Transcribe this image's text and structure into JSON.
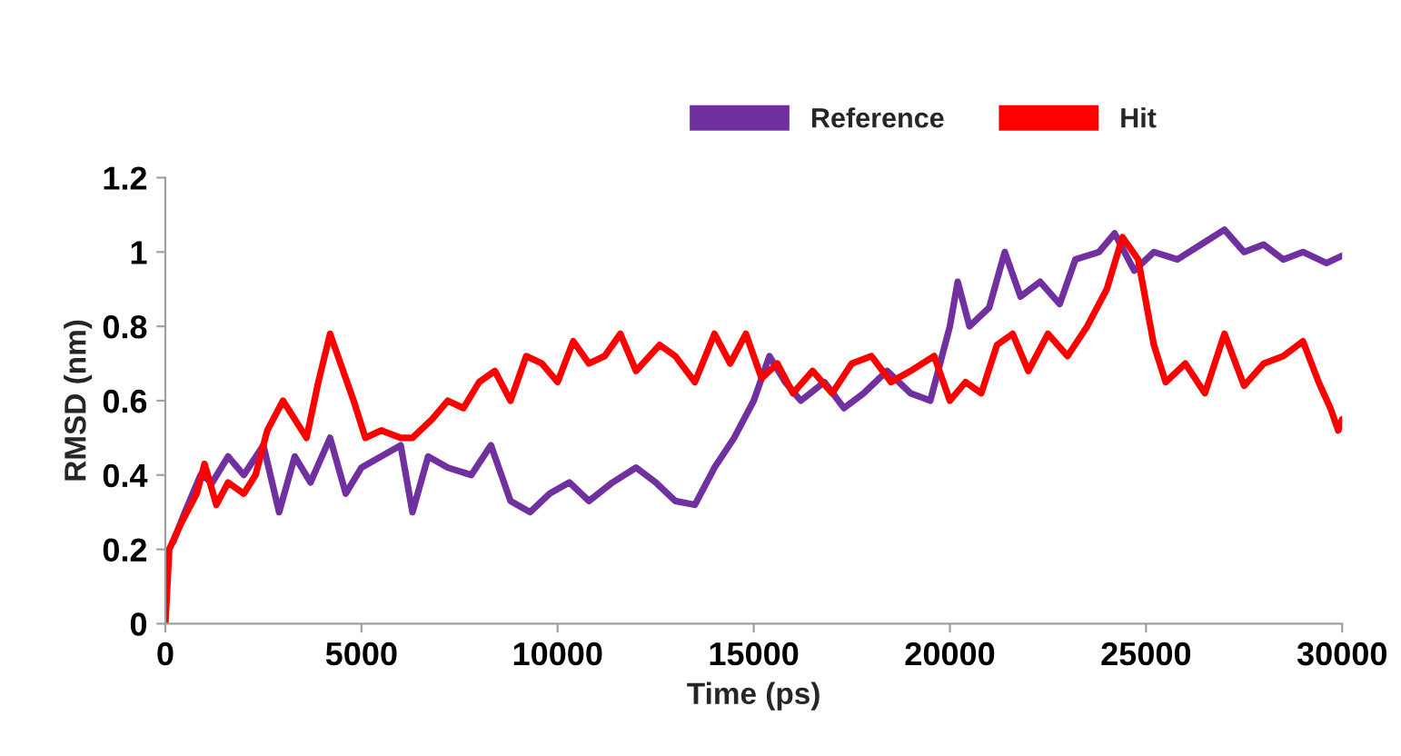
{
  "chart_data": {
    "type": "line",
    "xlabel": "Time (ps)",
    "ylabel": "RMSD (nm)",
    "xlim": [
      0,
      30000
    ],
    "xticks": [
      0,
      5000,
      10000,
      15000,
      20000,
      25000,
      30000
    ],
    "ylim": [
      0,
      1.2
    ],
    "yticks": [
      0,
      0.2,
      0.4,
      0.6,
      0.8,
      1,
      1.2
    ],
    "grid": false,
    "legend": "top right",
    "marker": "none",
    "line_style": "solid",
    "series": [
      {
        "name": "Reference",
        "color": "#7030a0",
        "x": [
          200,
          500,
          900,
          1200,
          1600,
          2000,
          2500,
          2900,
          3300,
          3700,
          4200,
          4600,
          5000,
          5500,
          6000,
          6300,
          6700,
          7200,
          7800,
          8300,
          8800,
          9300,
          9800,
          10300,
          10800,
          11400,
          12000,
          12500,
          13000,
          13500,
          14000,
          14500,
          15000,
          15400,
          15800,
          16200,
          16800,
          17300,
          17800,
          18400,
          19000,
          19500,
          20000,
          20200,
          20500,
          21000,
          21400,
          21800,
          22300,
          22800,
          23200,
          23800,
          24200,
          24700,
          25200,
          25800,
          26400,
          27000,
          27500,
          28000,
          28500,
          29000,
          29600,
          30000
        ],
        "values": [
          0.22,
          0.3,
          0.4,
          0.38,
          0.45,
          0.4,
          0.48,
          0.3,
          0.45,
          0.38,
          0.5,
          0.35,
          0.42,
          0.45,
          0.48,
          0.3,
          0.45,
          0.42,
          0.4,
          0.48,
          0.33,
          0.3,
          0.35,
          0.38,
          0.33,
          0.38,
          0.42,
          0.38,
          0.33,
          0.32,
          0.42,
          0.5,
          0.6,
          0.72,
          0.65,
          0.6,
          0.65,
          0.58,
          0.62,
          0.68,
          0.62,
          0.6,
          0.8,
          0.92,
          0.8,
          0.85,
          1.0,
          0.88,
          0.92,
          0.86,
          0.98,
          1.0,
          1.05,
          0.95,
          1.0,
          0.98,
          1.02,
          1.06,
          1.0,
          1.02,
          0.98,
          1.0,
          0.97,
          0.99
        ]
      },
      {
        "name": "Hit",
        "color": "#ff0000",
        "x": [
          0,
          100,
          400,
          800,
          1000,
          1300,
          1600,
          2000,
          2300,
          2600,
          3000,
          3300,
          3600,
          3900,
          4200,
          4400,
          4800,
          5100,
          5500,
          6000,
          6300,
          6800,
          7200,
          7600,
          8000,
          8400,
          8800,
          9200,
          9600,
          10000,
          10400,
          10800,
          11200,
          11600,
          12000,
          12600,
          13000,
          13500,
          14000,
          14400,
          14800,
          15200,
          15600,
          16000,
          16500,
          17000,
          17500,
          18000,
          18500,
          19000,
          19600,
          20000,
          20400,
          20800,
          21200,
          21600,
          22000,
          22500,
          23000,
          23500,
          24000,
          24400,
          24800,
          25200,
          25500,
          26000,
          26500,
          27000,
          27500,
          28000,
          28500,
          29000,
          29400,
          29700,
          29900,
          30000
        ],
        "values": [
          0,
          0.2,
          0.27,
          0.35,
          0.43,
          0.32,
          0.38,
          0.35,
          0.4,
          0.52,
          0.6,
          0.55,
          0.5,
          0.65,
          0.78,
          0.72,
          0.6,
          0.5,
          0.52,
          0.5,
          0.5,
          0.55,
          0.6,
          0.58,
          0.65,
          0.68,
          0.6,
          0.72,
          0.7,
          0.65,
          0.76,
          0.7,
          0.72,
          0.78,
          0.68,
          0.75,
          0.72,
          0.65,
          0.78,
          0.7,
          0.78,
          0.66,
          0.7,
          0.62,
          0.68,
          0.62,
          0.7,
          0.72,
          0.65,
          0.68,
          0.72,
          0.6,
          0.65,
          0.62,
          0.75,
          0.78,
          0.68,
          0.78,
          0.72,
          0.8,
          0.9,
          1.04,
          0.98,
          0.75,
          0.65,
          0.7,
          0.62,
          0.78,
          0.64,
          0.7,
          0.72,
          0.76,
          0.65,
          0.58,
          0.52,
          0.55
        ]
      }
    ]
  }
}
